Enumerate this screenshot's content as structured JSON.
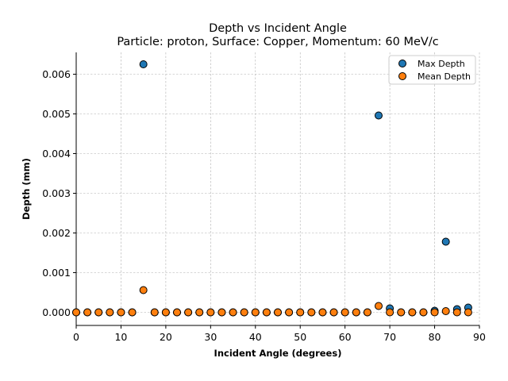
{
  "chart_data": {
    "type": "scatter",
    "title": "Depth vs Incident Angle",
    "subtitle": "Particle: proton, Surface: Copper, Momentum: 60 MeV/c",
    "xlabel": "Incident Angle (degrees)",
    "ylabel": "Depth (mm)",
    "xlim": [
      0,
      90
    ],
    "ylim": [
      -0.00033,
      0.00655
    ],
    "xticks": [
      0,
      10,
      20,
      30,
      40,
      50,
      60,
      70,
      80,
      90
    ],
    "yticks": [
      0.0,
      0.001,
      0.002,
      0.003,
      0.004,
      0.005,
      0.006
    ],
    "xtick_labels": [
      "0",
      "10",
      "20",
      "30",
      "40",
      "50",
      "60",
      "70",
      "80",
      "90"
    ],
    "ytick_labels": [
      "0.000",
      "0.001",
      "0.002",
      "0.003",
      "0.004",
      "0.005",
      "0.006"
    ],
    "grid": true,
    "legend_position": "top-right",
    "series": [
      {
        "name": "Max Depth",
        "color": "#1f77b4",
        "x": [
          0,
          2.5,
          5,
          7.5,
          10,
          12.5,
          15,
          17.5,
          20,
          22.5,
          25,
          27.5,
          30,
          32.5,
          35,
          37.5,
          40,
          42.5,
          45,
          47.5,
          50,
          52.5,
          55,
          57.5,
          60,
          62.5,
          65,
          67.5,
          70,
          72.5,
          75,
          77.5,
          80,
          82.5,
          85,
          87.5
        ],
        "y": [
          0,
          0,
          0,
          0,
          0,
          0,
          0.00625,
          0,
          0,
          0,
          0,
          0,
          0,
          0,
          0,
          0,
          0,
          0,
          0,
          0,
          0,
          0,
          0,
          0,
          0,
          0,
          0,
          0.00496,
          0.0001,
          0,
          0,
          0,
          4e-05,
          0.00178,
          8e-05,
          0.00012
        ]
      },
      {
        "name": "Mean Depth",
        "color": "#ff7f0e",
        "x": [
          0,
          2.5,
          5,
          7.5,
          10,
          12.5,
          15,
          17.5,
          20,
          22.5,
          25,
          27.5,
          30,
          32.5,
          35,
          37.5,
          40,
          42.5,
          45,
          47.5,
          50,
          52.5,
          55,
          57.5,
          60,
          62.5,
          65,
          67.5,
          70,
          72.5,
          75,
          77.5,
          80,
          82.5,
          85,
          87.5
        ],
        "y": [
          0,
          0,
          0,
          0,
          0,
          0,
          0.00056,
          0,
          0,
          0,
          0,
          0,
          0,
          0,
          0,
          0,
          0,
          0,
          0,
          0,
          0,
          0,
          0,
          0,
          0,
          0,
          0,
          0.00016,
          0,
          0,
          0,
          0,
          0,
          3e-05,
          0,
          0
        ]
      }
    ]
  }
}
